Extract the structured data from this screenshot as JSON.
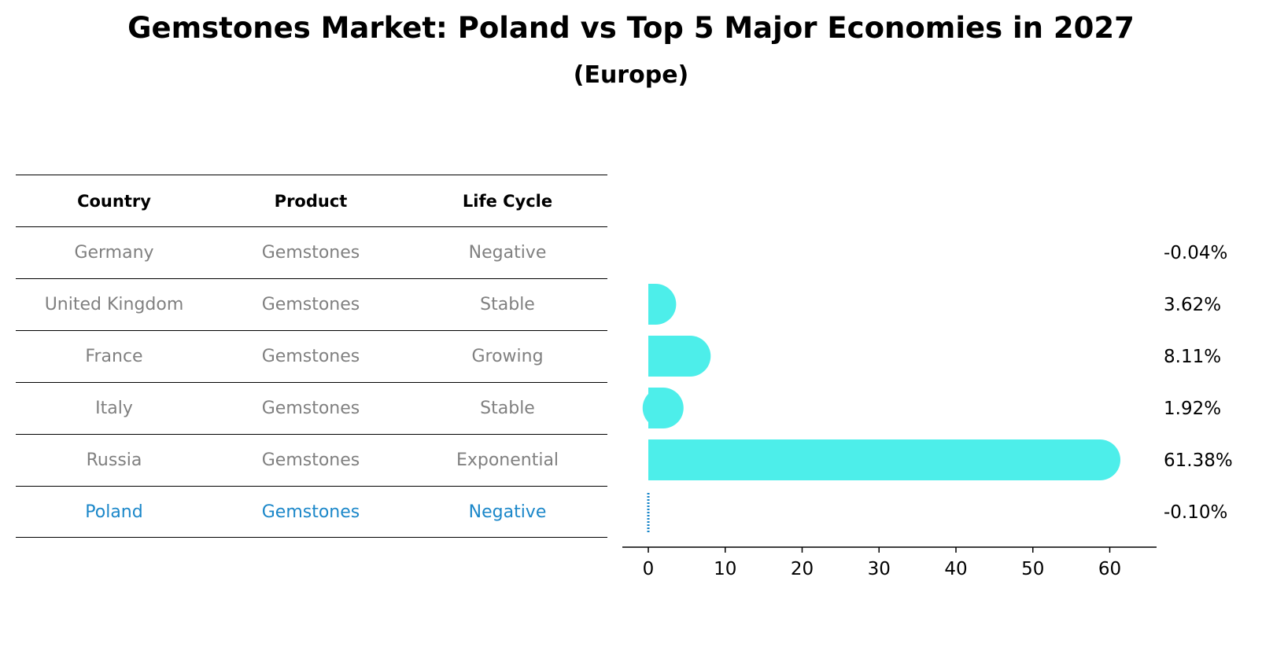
{
  "title": "Gemstones Market: Poland vs Top 5 Major Economies in 2027",
  "subtitle": "(Europe)",
  "table": {
    "headers": [
      "Country",
      "Product",
      "Life Cycle"
    ],
    "rows": [
      [
        "Germany",
        "Gemstones",
        "Negative"
      ],
      [
        "United Kingdom",
        "Gemstones",
        "Stable"
      ],
      [
        "France",
        "Gemstones",
        "Growing"
      ],
      [
        "Italy",
        "Gemstones",
        "Stable"
      ],
      [
        "Russia",
        "Gemstones",
        "Exponential"
      ],
      [
        "Poland",
        "Gemstones",
        "Negative"
      ]
    ],
    "highlight_row": 5
  },
  "colors": {
    "bar": "#4deeea",
    "highlight": "#1b87c9",
    "muted": "#808080"
  },
  "chart_data": {
    "type": "bar",
    "orientation": "horizontal",
    "categories": [
      "Germany",
      "United Kingdom",
      "France",
      "Italy",
      "Russia",
      "Poland"
    ],
    "values": [
      -0.04,
      3.62,
      8.11,
      1.92,
      61.38,
      -0.1
    ],
    "value_labels": [
      "-0.04%",
      "3.62%",
      "8.11%",
      "1.92%",
      "61.38%",
      "-0.10%"
    ],
    "xticks": [
      0,
      10,
      20,
      30,
      40,
      50,
      60
    ],
    "xtick_labels": [
      "0",
      "10",
      "20",
      "30",
      "40",
      "50",
      "60"
    ],
    "xlim": [
      -3.3,
      64.4
    ],
    "title": "",
    "xlabel": "",
    "ylabel": ""
  }
}
